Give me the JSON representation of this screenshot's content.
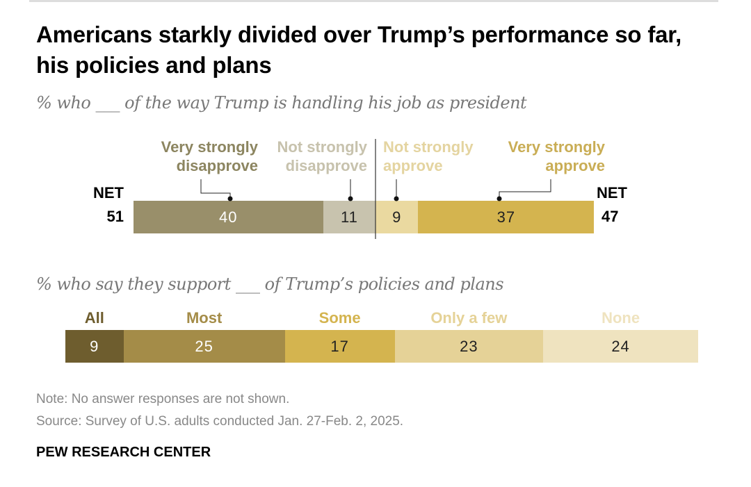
{
  "title": "Americans starkly divided over Trump’s performance so far, his policies and plans",
  "chart_data": [
    {
      "type": "bar",
      "orientation": "horizontal-stacked-diverging",
      "subtitle": "% who ___ of the way Trump is handling his job as president",
      "categories": [
        "Very strongly disapprove",
        "Not strongly disapprove",
        "Not strongly approve",
        "Very strongly approve"
      ],
      "values": [
        40,
        11,
        9,
        37
      ],
      "colors": [
        "#998f6a",
        "#c8c3ae",
        "#ead9a0",
        "#d4b44f"
      ],
      "label_colors": [
        "#8c8560",
        "#c7c2ad",
        "#e4d4a0",
        "#c9ad55"
      ],
      "value_text_colors": [
        "#ffffff",
        "#222222",
        "#222222",
        "#222222"
      ],
      "net": {
        "disapprove": {
          "label": "NET",
          "value": 51
        },
        "approve": {
          "label": "NET",
          "value": 47
        }
      }
    },
    {
      "type": "bar",
      "orientation": "horizontal-stacked",
      "subtitle": "% who say they support ___ of Trump’s policies and plans",
      "categories": [
        "All",
        "Most",
        "Some",
        "Only a few",
        "None"
      ],
      "values": [
        9,
        25,
        17,
        23,
        24
      ],
      "colors": [
        "#6e5d2e",
        "#a48c48",
        "#d4b44f",
        "#e5d297",
        "#efe3bf"
      ],
      "label_colors": [
        "#6e5d2e",
        "#a48c48",
        "#d4b44f",
        "#e5d297",
        "#efe3bf"
      ],
      "value_text_colors": [
        "#ffffff",
        "#ffffff",
        "#222222",
        "#222222",
        "#222222"
      ]
    }
  ],
  "footer": {
    "note": "Note: No answer responses are not shown.",
    "source": "Source: Survey of U.S. adults conducted Jan. 27-Feb. 2, 2025.",
    "brand": "PEW RESEARCH CENTER"
  }
}
